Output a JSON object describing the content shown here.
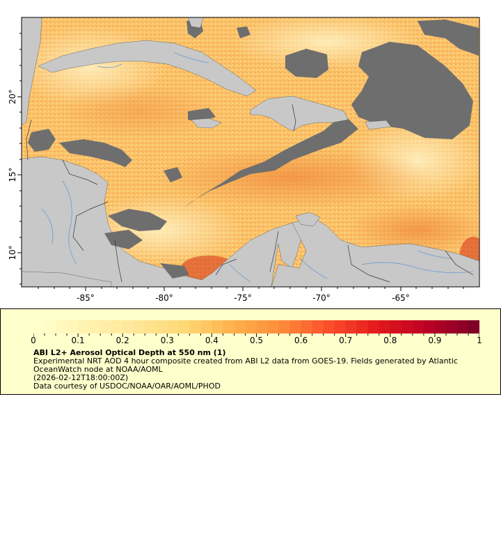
{
  "map": {
    "x_axis_labels": [
      "-85°",
      "-80°",
      "-75°",
      "-70°",
      "-65°"
    ],
    "y_axis_labels": [
      "20°",
      "15°",
      "10°"
    ],
    "colors": {
      "land": "#c8c8c8",
      "cloud": "#6e6e6e",
      "ocean_low": "#fde9a8",
      "ocean_mid": "#fbc56b",
      "ocean_high": "#f08a3a",
      "ocean_peak": "#d93a1b",
      "border": "#333333",
      "river": "#6a9ad0"
    }
  },
  "legend": {
    "colorbar_labels": [
      "0",
      "0.1",
      "0.2",
      "0.3",
      "0.4",
      "0.5",
      "0.6",
      "0.7",
      "0.8",
      "0.9",
      "1"
    ],
    "colorbar_range": [
      0,
      1
    ],
    "colorbar_colors": [
      "#ffffcc",
      "#fff2b0",
      "#ffe699",
      "#fed976",
      "#feb24c",
      "#fd8d3c",
      "#fc4e2a",
      "#e31a1c",
      "#bd0026",
      "#800026"
    ],
    "title": "ABI L2+ Aerosol Optical Depth at 550 nm (1)",
    "description": "Experimental NRT AOD 4 hour composite created from ABI L2 data from GOES-19. Fields generated by Atlantic OceanWatch node at NOAA/AOML",
    "timestamp": "(2026-02-12T18:00:00Z)",
    "credit": "Data courtesy of USDOC/NOAA/OAR/AOML/PHOD"
  }
}
